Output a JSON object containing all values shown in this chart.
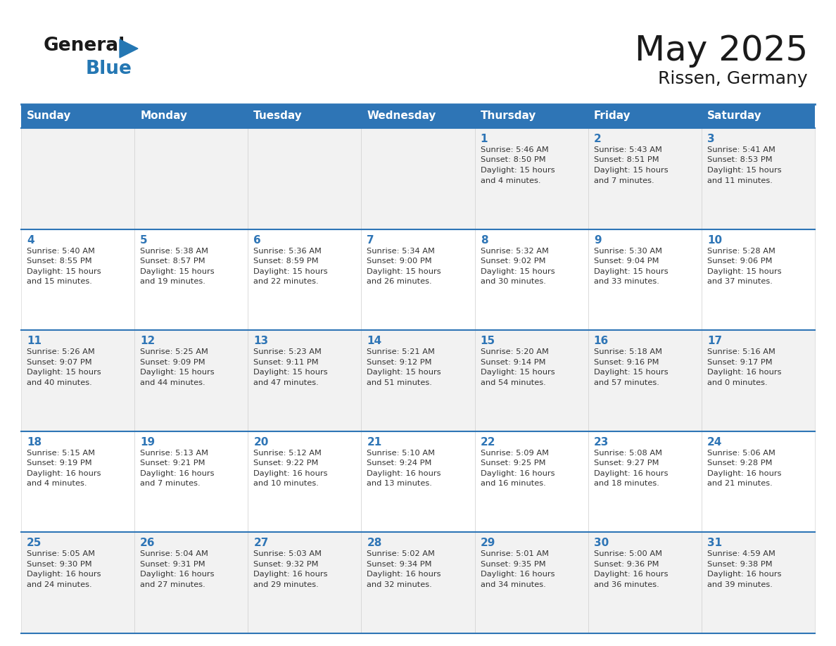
{
  "title": "May 2025",
  "subtitle": "Rissen, Germany",
  "header_bg": "#2E75B6",
  "header_text_color": "#FFFFFF",
  "day_names": [
    "Sunday",
    "Monday",
    "Tuesday",
    "Wednesday",
    "Thursday",
    "Friday",
    "Saturday"
  ],
  "row_bg": [
    "#F2F2F2",
    "#FFFFFF",
    "#F2F2F2",
    "#FFFFFF",
    "#F2F2F2"
  ],
  "cell_text_color": "#333333",
  "day_number_color": "#2E75B6",
  "grid_color": "#2E75B6",
  "logo_general_color": "#1a1a1a",
  "logo_blue_color": "#2477B3",
  "calendar": [
    [
      null,
      null,
      null,
      null,
      {
        "day": 1,
        "sunrise": "5:46 AM",
        "sunset": "8:50 PM",
        "daylight": "15 hours",
        "daylight2": "and 4 minutes."
      },
      {
        "day": 2,
        "sunrise": "5:43 AM",
        "sunset": "8:51 PM",
        "daylight": "15 hours",
        "daylight2": "and 7 minutes."
      },
      {
        "day": 3,
        "sunrise": "5:41 AM",
        "sunset": "8:53 PM",
        "daylight": "15 hours",
        "daylight2": "and 11 minutes."
      }
    ],
    [
      {
        "day": 4,
        "sunrise": "5:40 AM",
        "sunset": "8:55 PM",
        "daylight": "15 hours",
        "daylight2": "and 15 minutes."
      },
      {
        "day": 5,
        "sunrise": "5:38 AM",
        "sunset": "8:57 PM",
        "daylight": "15 hours",
        "daylight2": "and 19 minutes."
      },
      {
        "day": 6,
        "sunrise": "5:36 AM",
        "sunset": "8:59 PM",
        "daylight": "15 hours",
        "daylight2": "and 22 minutes."
      },
      {
        "day": 7,
        "sunrise": "5:34 AM",
        "sunset": "9:00 PM",
        "daylight": "15 hours",
        "daylight2": "and 26 minutes."
      },
      {
        "day": 8,
        "sunrise": "5:32 AM",
        "sunset": "9:02 PM",
        "daylight": "15 hours",
        "daylight2": "and 30 minutes."
      },
      {
        "day": 9,
        "sunrise": "5:30 AM",
        "sunset": "9:04 PM",
        "daylight": "15 hours",
        "daylight2": "and 33 minutes."
      },
      {
        "day": 10,
        "sunrise": "5:28 AM",
        "sunset": "9:06 PM",
        "daylight": "15 hours",
        "daylight2": "and 37 minutes."
      }
    ],
    [
      {
        "day": 11,
        "sunrise": "5:26 AM",
        "sunset": "9:07 PM",
        "daylight": "15 hours",
        "daylight2": "and 40 minutes."
      },
      {
        "day": 12,
        "sunrise": "5:25 AM",
        "sunset": "9:09 PM",
        "daylight": "15 hours",
        "daylight2": "and 44 minutes."
      },
      {
        "day": 13,
        "sunrise": "5:23 AM",
        "sunset": "9:11 PM",
        "daylight": "15 hours",
        "daylight2": "and 47 minutes."
      },
      {
        "day": 14,
        "sunrise": "5:21 AM",
        "sunset": "9:12 PM",
        "daylight": "15 hours",
        "daylight2": "and 51 minutes."
      },
      {
        "day": 15,
        "sunrise": "5:20 AM",
        "sunset": "9:14 PM",
        "daylight": "15 hours",
        "daylight2": "and 54 minutes."
      },
      {
        "day": 16,
        "sunrise": "5:18 AM",
        "sunset": "9:16 PM",
        "daylight": "15 hours",
        "daylight2": "and 57 minutes."
      },
      {
        "day": 17,
        "sunrise": "5:16 AM",
        "sunset": "9:17 PM",
        "daylight": "16 hours",
        "daylight2": "and 0 minutes."
      }
    ],
    [
      {
        "day": 18,
        "sunrise": "5:15 AM",
        "sunset": "9:19 PM",
        "daylight": "16 hours",
        "daylight2": "and 4 minutes."
      },
      {
        "day": 19,
        "sunrise": "5:13 AM",
        "sunset": "9:21 PM",
        "daylight": "16 hours",
        "daylight2": "and 7 minutes."
      },
      {
        "day": 20,
        "sunrise": "5:12 AM",
        "sunset": "9:22 PM",
        "daylight": "16 hours",
        "daylight2": "and 10 minutes."
      },
      {
        "day": 21,
        "sunrise": "5:10 AM",
        "sunset": "9:24 PM",
        "daylight": "16 hours",
        "daylight2": "and 13 minutes."
      },
      {
        "day": 22,
        "sunrise": "5:09 AM",
        "sunset": "9:25 PM",
        "daylight": "16 hours",
        "daylight2": "and 16 minutes."
      },
      {
        "day": 23,
        "sunrise": "5:08 AM",
        "sunset": "9:27 PM",
        "daylight": "16 hours",
        "daylight2": "and 18 minutes."
      },
      {
        "day": 24,
        "sunrise": "5:06 AM",
        "sunset": "9:28 PM",
        "daylight": "16 hours",
        "daylight2": "and 21 minutes."
      }
    ],
    [
      {
        "day": 25,
        "sunrise": "5:05 AM",
        "sunset": "9:30 PM",
        "daylight": "16 hours",
        "daylight2": "and 24 minutes."
      },
      {
        "day": 26,
        "sunrise": "5:04 AM",
        "sunset": "9:31 PM",
        "daylight": "16 hours",
        "daylight2": "and 27 minutes."
      },
      {
        "day": 27,
        "sunrise": "5:03 AM",
        "sunset": "9:32 PM",
        "daylight": "16 hours",
        "daylight2": "and 29 minutes."
      },
      {
        "day": 28,
        "sunrise": "5:02 AM",
        "sunset": "9:34 PM",
        "daylight": "16 hours",
        "daylight2": "and 32 minutes."
      },
      {
        "day": 29,
        "sunrise": "5:01 AM",
        "sunset": "9:35 PM",
        "daylight": "16 hours",
        "daylight2": "and 34 minutes."
      },
      {
        "day": 30,
        "sunrise": "5:00 AM",
        "sunset": "9:36 PM",
        "daylight": "16 hours",
        "daylight2": "and 36 minutes."
      },
      {
        "day": 31,
        "sunrise": "4:59 AM",
        "sunset": "9:38 PM",
        "daylight": "16 hours",
        "daylight2": "and 39 minutes."
      }
    ]
  ]
}
